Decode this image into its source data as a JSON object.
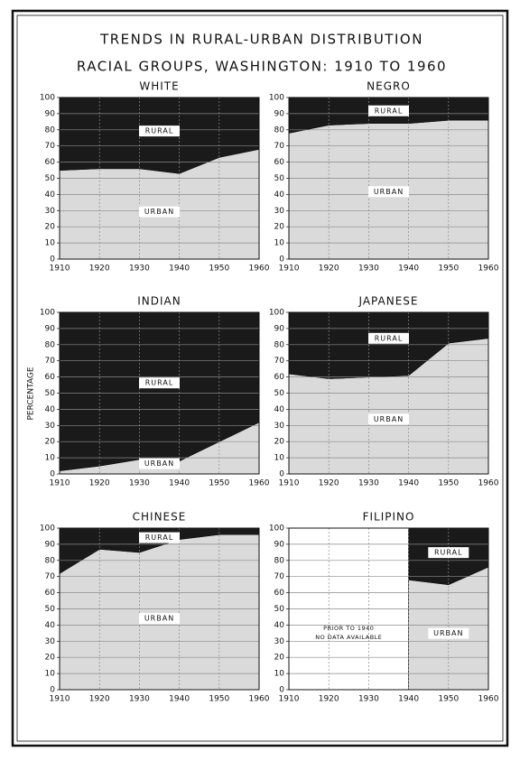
{
  "header": {
    "title": "TRENDS IN RURAL-URBAN DISTRIBUTION",
    "subtitle": "RACIAL GROUPS, WASHINGTON: 1910 TO 1960"
  },
  "y_axis_label": "PERCENTAGE",
  "chart_data": [
    {
      "type": "area",
      "title": "WHITE",
      "x": [
        1910,
        1920,
        1930,
        1940,
        1950,
        1960
      ],
      "xlim": [
        1910,
        1960
      ],
      "xticks": [
        1910,
        1920,
        1930,
        1940,
        1950,
        1960
      ],
      "ylim": [
        0,
        100
      ],
      "yticks": [
        0,
        10,
        20,
        30,
        40,
        50,
        60,
        70,
        80,
        90,
        100
      ],
      "grid": true,
      "stacked": true,
      "series": [
        {
          "name": "URBAN",
          "color": "#dadada",
          "values": [
            55,
            56,
            56,
            53,
            63,
            68
          ]
        },
        {
          "name": "RURAL",
          "color": "#1a1a1a",
          "values": [
            45,
            44,
            44,
            47,
            37,
            32
          ]
        }
      ]
    },
    {
      "type": "area",
      "title": "NEGRO",
      "x": [
        1910,
        1920,
        1930,
        1940,
        1950,
        1960
      ],
      "xlim": [
        1910,
        1960
      ],
      "xticks": [
        1910,
        1920,
        1930,
        1940,
        1950,
        1960
      ],
      "ylim": [
        0,
        100
      ],
      "yticks": [
        0,
        10,
        20,
        30,
        40,
        50,
        60,
        70,
        80,
        90,
        100
      ],
      "grid": true,
      "stacked": true,
      "series": [
        {
          "name": "URBAN",
          "color": "#dadada",
          "values": [
            78,
            83,
            84,
            84,
            86,
            86
          ]
        },
        {
          "name": "RURAL",
          "color": "#1a1a1a",
          "values": [
            22,
            17,
            16,
            16,
            14,
            14
          ]
        }
      ]
    },
    {
      "type": "area",
      "title": "INDIAN",
      "x": [
        1910,
        1920,
        1930,
        1940,
        1950,
        1960
      ],
      "xlim": [
        1910,
        1960
      ],
      "xticks": [
        1910,
        1920,
        1930,
        1940,
        1950,
        1960
      ],
      "ylim": [
        0,
        100
      ],
      "yticks": [
        0,
        10,
        20,
        30,
        40,
        50,
        60,
        70,
        80,
        90,
        100
      ],
      "grid": true,
      "stacked": true,
      "series": [
        {
          "name": "URBAN",
          "color": "#dadada",
          "values": [
            2,
            5,
            9,
            8,
            20,
            32
          ]
        },
        {
          "name": "RURAL",
          "color": "#1a1a1a",
          "values": [
            98,
            95,
            91,
            92,
            80,
            68
          ]
        }
      ]
    },
    {
      "type": "area",
      "title": "JAPANESE",
      "x": [
        1910,
        1920,
        1930,
        1940,
        1950,
        1960
      ],
      "xlim": [
        1910,
        1960
      ],
      "xticks": [
        1910,
        1920,
        1930,
        1940,
        1950,
        1960
      ],
      "ylim": [
        0,
        100
      ],
      "yticks": [
        0,
        10,
        20,
        30,
        40,
        50,
        60,
        70,
        80,
        90,
        100
      ],
      "grid": true,
      "stacked": true,
      "series": [
        {
          "name": "URBAN",
          "color": "#dadada",
          "values": [
            62,
            59,
            60,
            61,
            81,
            84
          ]
        },
        {
          "name": "RURAL",
          "color": "#1a1a1a",
          "values": [
            38,
            41,
            40,
            39,
            19,
            16
          ]
        }
      ]
    },
    {
      "type": "area",
      "title": "CHINESE",
      "x": [
        1910,
        1920,
        1930,
        1940,
        1950,
        1960
      ],
      "xlim": [
        1910,
        1960
      ],
      "xticks": [
        1910,
        1920,
        1930,
        1940,
        1950,
        1960
      ],
      "ylim": [
        0,
        100
      ],
      "yticks": [
        0,
        10,
        20,
        30,
        40,
        50,
        60,
        70,
        80,
        90,
        100
      ],
      "grid": true,
      "stacked": true,
      "series": [
        {
          "name": "URBAN",
          "color": "#dadada",
          "values": [
            72,
            87,
            85,
            93,
            96,
            96
          ]
        },
        {
          "name": "RURAL",
          "color": "#1a1a1a",
          "values": [
            28,
            13,
            15,
            7,
            4,
            4
          ]
        }
      ]
    },
    {
      "type": "area",
      "title": "FILIPINO",
      "x": [
        1910,
        1920,
        1930,
        1940,
        1950,
        1960
      ],
      "xlim": [
        1910,
        1960
      ],
      "xticks": [
        1910,
        1920,
        1930,
        1940,
        1950,
        1960
      ],
      "ylim": [
        0,
        100
      ],
      "yticks": [
        0,
        10,
        20,
        30,
        40,
        50,
        60,
        70,
        80,
        90,
        100
      ],
      "grid": true,
      "stacked": true,
      "note": [
        "PRIOR TO 1940",
        "NO DATA AVAILABLE"
      ],
      "series": [
        {
          "name": "URBAN",
          "color": "#dadada",
          "values": [
            null,
            null,
            null,
            68,
            65,
            76
          ]
        },
        {
          "name": "RURAL",
          "color": "#1a1a1a",
          "values": [
            null,
            null,
            null,
            32,
            35,
            24
          ]
        }
      ]
    }
  ]
}
